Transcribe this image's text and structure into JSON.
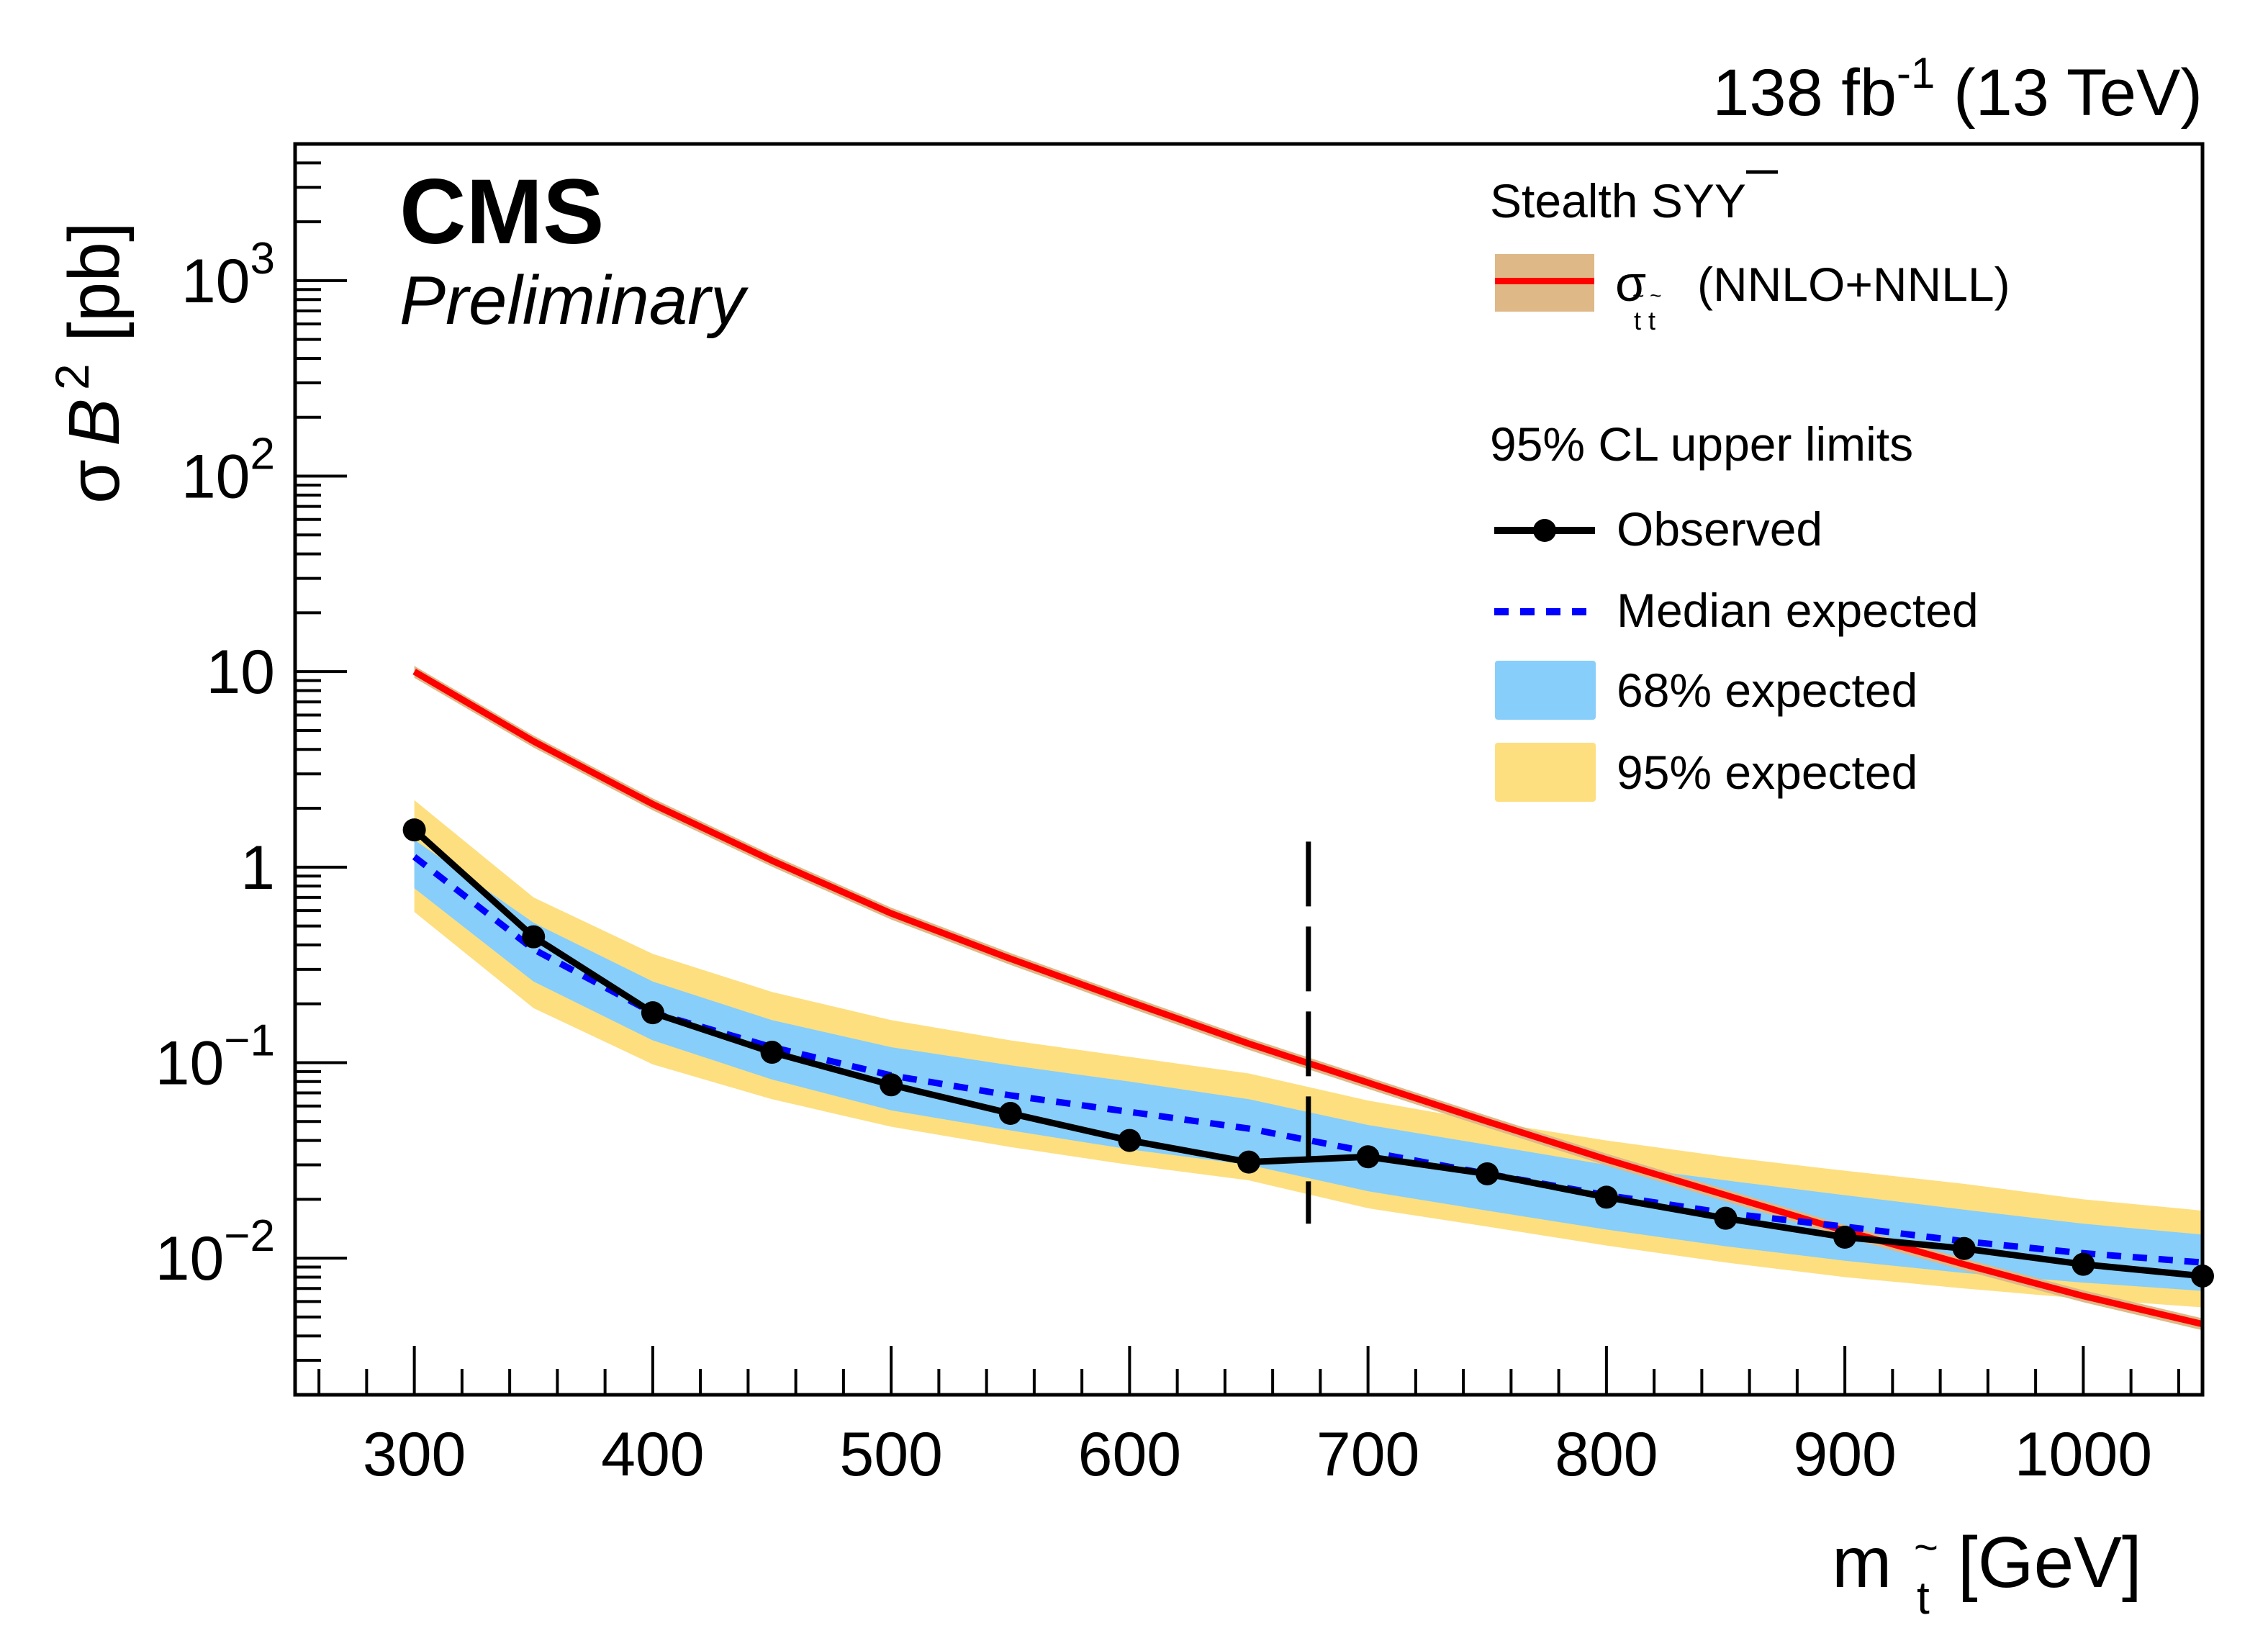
{
  "chart_data": {
    "type": "line",
    "experiment": "CMS",
    "status": "Preliminary",
    "lumi_label": {
      "value": "138",
      "unit": "fb",
      "exponent": "-1",
      "energy": "(13 TeV)"
    },
    "xlabel": {
      "main": "m",
      "sub": "t",
      "sub_accent": "~",
      "unit": "[GeV]"
    },
    "ylabel": {
      "sigma": "σ",
      "B": "B",
      "exponent": "2",
      "unit": "[pb]"
    },
    "x_range": [
      250,
      1050
    ],
    "y_range": [
      0.002,
      5000
    ],
    "y_scale": "log",
    "x_ticks": [
      300,
      400,
      500,
      600,
      700,
      800,
      900,
      1000
    ],
    "x_tick_labels": [
      "300",
      "400",
      "500",
      "600",
      "700",
      "800",
      "900",
      "1000"
    ],
    "y_ticks": [
      {
        "value": 0.01,
        "base": "10",
        "exp": "−2"
      },
      {
        "value": 0.1,
        "base": "10",
        "exp": "−1"
      },
      {
        "value": 1,
        "base": "1",
        "exp": ""
      },
      {
        "value": 10,
        "base": "10",
        "exp": ""
      },
      {
        "value": 100,
        "base": "10",
        "exp": "2"
      },
      {
        "value": 1000,
        "base": "10",
        "exp": "3"
      }
    ],
    "x": [
      300,
      350,
      400,
      450,
      500,
      550,
      600,
      650,
      700,
      750,
      800,
      850,
      900,
      950,
      1000,
      1050
    ],
    "series": [
      {
        "name": "Observed",
        "style": "solid-markers",
        "color": "#000000",
        "values": [
          1.55,
          0.44,
          0.18,
          0.113,
          0.077,
          0.055,
          0.04,
          0.031,
          0.033,
          0.027,
          0.0205,
          0.016,
          0.0128,
          0.0112,
          0.0093,
          0.0081
        ]
      },
      {
        "name": "Median expected",
        "style": "dashed",
        "color": "#0000ff",
        "values": [
          1.13,
          0.38,
          0.18,
          0.12,
          0.086,
          0.068,
          0.056,
          0.046,
          0.035,
          0.027,
          0.021,
          0.017,
          0.0145,
          0.0122,
          0.0106,
          0.0095
        ]
      },
      {
        "name": "σ t̃t̃ (NNLO+NNLL)",
        "style": "solid",
        "color": "#ff0000",
        "band_color": "#deb887",
        "values": [
          10.0,
          4.4,
          2.1,
          1.08,
          0.58,
          0.34,
          0.205,
          0.125,
          0.079,
          0.05,
          0.032,
          0.021,
          0.0138,
          0.0093,
          0.0064,
          0.0046
        ],
        "band_rel": 0.07
      }
    ],
    "bands": [
      {
        "name": "95% expected",
        "color": "#fddf80",
        "upper": [
          2.2,
          0.7,
          0.36,
          0.23,
          0.165,
          0.13,
          0.107,
          0.088,
          0.064,
          0.05,
          0.04,
          0.033,
          0.028,
          0.024,
          0.02,
          0.0175
        ],
        "lower": [
          0.59,
          0.19,
          0.098,
          0.065,
          0.047,
          0.037,
          0.03,
          0.025,
          0.018,
          0.0145,
          0.0116,
          0.0095,
          0.008,
          0.007,
          0.0062,
          0.0056
        ]
      },
      {
        "name": "68% expected",
        "color": "#87cefa",
        "upper": [
          1.38,
          0.52,
          0.26,
          0.165,
          0.12,
          0.097,
          0.08,
          0.065,
          0.048,
          0.038,
          0.03,
          0.025,
          0.021,
          0.0177,
          0.015,
          0.0132
        ],
        "lower": [
          0.78,
          0.26,
          0.13,
          0.082,
          0.057,
          0.045,
          0.036,
          0.03,
          0.022,
          0.0175,
          0.014,
          0.0115,
          0.0097,
          0.0084,
          0.0075,
          0.0068
        ]
      }
    ],
    "vertical_marker": {
      "x": 675,
      "y_from": 0.015,
      "y_to": 1.35,
      "style": "long-dashed",
      "color": "#000000"
    },
    "legend": {
      "placement": "top-right",
      "header": "Stealth SYY",
      "header_overline": "Y",
      "theory_label": {
        "sigma": "σ",
        "sub": "t t",
        "text": "(NNLO+NNLL)"
      },
      "limits_header": "95% CL upper limits",
      "entries": [
        "Observed",
        "Median expected",
        "68% expected",
        "95% expected"
      ]
    },
    "grid": false
  }
}
